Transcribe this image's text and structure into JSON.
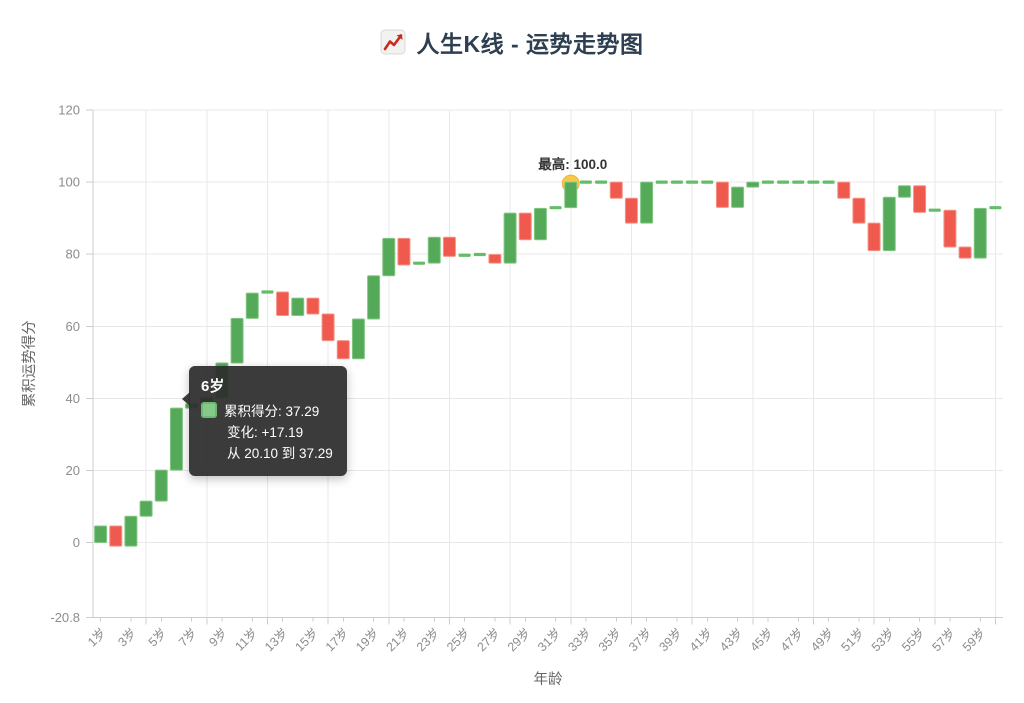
{
  "header": {
    "title": "人生K线 - 运势走势图",
    "title_icon": "chart-increasing-icon"
  },
  "tooltip": {
    "title": "6岁",
    "rows": [
      {
        "swatch": true,
        "text": "累积得分: 37.29"
      },
      {
        "swatch": false,
        "text": "变化: +17.19"
      },
      {
        "swatch": false,
        "text": "从 20.10 到 37.29"
      }
    ]
  },
  "chart_data": {
    "type": "candlestick",
    "title": "人生K线 - 运势走势图",
    "xlabel": "年龄",
    "ylabel": "累积运势得分",
    "ylim": [
      -20.8,
      120
    ],
    "grid": true,
    "legend_position": "none",
    "y_tick_values": [
      120,
      100,
      80,
      60,
      40,
      20,
      0,
      -20.8
    ],
    "y_tick_labels": [
      "120",
      "100",
      "80",
      "60",
      "40",
      "20",
      "0",
      "-20.8"
    ],
    "x_tick_labels": [
      "1岁",
      "3岁",
      "5岁",
      "7岁",
      "9岁",
      "11岁",
      "13岁",
      "15岁",
      "17岁",
      "19岁",
      "21岁",
      "23岁",
      "25岁",
      "27岁",
      "29岁",
      "31岁",
      "33岁",
      "35岁",
      "37岁",
      "39岁",
      "41岁",
      "43岁",
      "45岁",
      "47岁",
      "49岁",
      "51岁",
      "53岁",
      "55岁",
      "57岁",
      "59岁"
    ],
    "candles": [
      {
        "age": 1,
        "open": 0,
        "close": 4.6
      },
      {
        "age": 2,
        "open": 4.6,
        "close": -1.0
      },
      {
        "age": 3,
        "open": -1.0,
        "close": 7.3
      },
      {
        "age": 4,
        "open": 7.3,
        "close": 11.5
      },
      {
        "age": 5,
        "open": 11.5,
        "close": 20.1
      },
      {
        "age": 6,
        "open": 20.1,
        "close": 37.29
      },
      {
        "age": 7,
        "open": 37.29,
        "close": 38.5
      },
      {
        "age": 8,
        "open": 38.5,
        "close": 40.2
      },
      {
        "age": 9,
        "open": 40.2,
        "close": 49.8
      },
      {
        "age": 10,
        "open": 49.8,
        "close": 62.2
      },
      {
        "age": 11,
        "open": 62.2,
        "close": 69.2
      },
      {
        "age": 12,
        "open": 69.2,
        "close": 69.5
      },
      {
        "age": 13,
        "open": 69.5,
        "close": 63.0
      },
      {
        "age": 14,
        "open": 63.0,
        "close": 67.8
      },
      {
        "age": 15,
        "open": 67.8,
        "close": 63.4
      },
      {
        "age": 16,
        "open": 63.4,
        "close": 56.0
      },
      {
        "age": 17,
        "open": 56.0,
        "close": 51.0
      },
      {
        "age": 18,
        "open": 51.0,
        "close": 62.0
      },
      {
        "age": 19,
        "open": 62.0,
        "close": 74.0
      },
      {
        "age": 20,
        "open": 74.0,
        "close": 84.4
      },
      {
        "age": 21,
        "open": 84.4,
        "close": 77.0
      },
      {
        "age": 22,
        "open": 77.0,
        "close": 77.5
      },
      {
        "age": 23,
        "open": 77.5,
        "close": 84.7
      },
      {
        "age": 24,
        "open": 84.7,
        "close": 79.4
      },
      {
        "age": 25,
        "open": 79.4,
        "close": 79.7
      },
      {
        "age": 26,
        "open": 79.7,
        "close": 79.9
      },
      {
        "age": 27,
        "open": 79.9,
        "close": 77.5
      },
      {
        "age": 28,
        "open": 77.5,
        "close": 91.4
      },
      {
        "age": 29,
        "open": 91.4,
        "close": 84.0
      },
      {
        "age": 30,
        "open": 84.0,
        "close": 92.7
      },
      {
        "age": 31,
        "open": 92.7,
        "close": 92.9
      },
      {
        "age": 32,
        "open": 92.9,
        "close": 100.0
      },
      {
        "age": 33,
        "open": 100.0,
        "close": 100.0
      },
      {
        "age": 34,
        "open": 100.0,
        "close": 100.0
      },
      {
        "age": 35,
        "open": 100.0,
        "close": 95.5
      },
      {
        "age": 36,
        "open": 95.5,
        "close": 88.6
      },
      {
        "age": 37,
        "open": 88.6,
        "close": 100.0
      },
      {
        "age": 38,
        "open": 100.0,
        "close": 100.0
      },
      {
        "age": 39,
        "open": 100.0,
        "close": 100.0
      },
      {
        "age": 40,
        "open": 100.0,
        "close": 100.0
      },
      {
        "age": 41,
        "open": 100.0,
        "close": 100.0
      },
      {
        "age": 42,
        "open": 100.0,
        "close": 93.0
      },
      {
        "age": 43,
        "open": 93.0,
        "close": 98.6
      },
      {
        "age": 44,
        "open": 98.6,
        "close": 100.0
      },
      {
        "age": 45,
        "open": 100.0,
        "close": 100.0
      },
      {
        "age": 46,
        "open": 100.0,
        "close": 100.0
      },
      {
        "age": 47,
        "open": 100.0,
        "close": 100.0
      },
      {
        "age": 48,
        "open": 100.0,
        "close": 100.0
      },
      {
        "age": 49,
        "open": 100.0,
        "close": 100.0
      },
      {
        "age": 50,
        "open": 100.0,
        "close": 95.5
      },
      {
        "age": 51,
        "open": 95.5,
        "close": 88.6
      },
      {
        "age": 52,
        "open": 88.6,
        "close": 81.0
      },
      {
        "age": 53,
        "open": 81.0,
        "close": 95.8
      },
      {
        "age": 54,
        "open": 95.8,
        "close": 99.0
      },
      {
        "age": 55,
        "open": 99.0,
        "close": 91.6
      },
      {
        "age": 56,
        "open": 91.6,
        "close": 92.2
      },
      {
        "age": 57,
        "open": 92.2,
        "close": 82.0
      },
      {
        "age": 58,
        "open": 82.0,
        "close": 78.9
      },
      {
        "age": 59,
        "open": 78.9,
        "close": 92.7
      },
      {
        "age": 60,
        "open": 92.7,
        "close": 92.9
      }
    ],
    "annotations": {
      "max_point": {
        "label": "最高: 100.0",
        "age": 32,
        "value": 100.0
      }
    },
    "colors": {
      "up": "#54aa58",
      "up_border": "#82c884",
      "flat": "#63bd67",
      "down": "#f05a4e",
      "down_border": "#f59286",
      "max_marker": "#f9c74b",
      "max_marker_border": "#edb33e",
      "grid": "#e8e8e8",
      "axis": "#cccccc",
      "tick_label": "#8c8c8c",
      "axis_name": "#666666",
      "title": "#2d3f50",
      "annotation_text": "#333333"
    }
  }
}
